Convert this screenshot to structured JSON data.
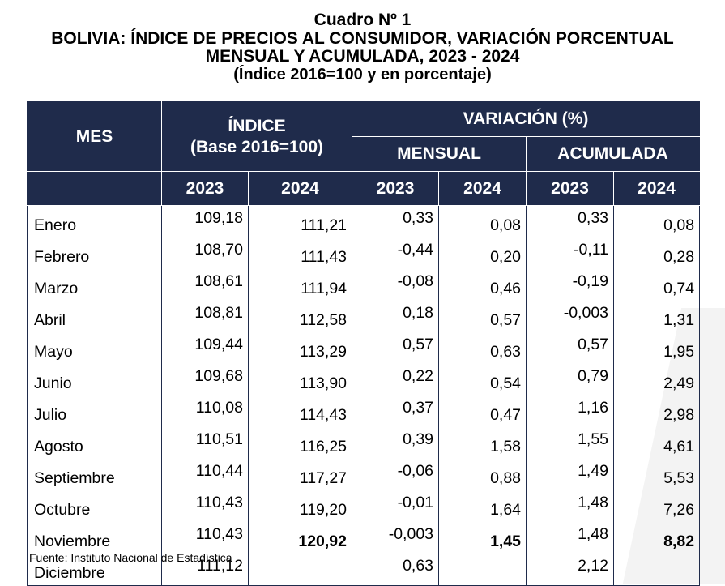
{
  "title": {
    "line1": "Cuadro Nº 1",
    "line2": "BOLIVIA: ÍNDICE DE PRECIOS AL CONSUMIDOR, VARIACIÓN PORCENTUAL",
    "line3": "MENSUAL Y ACUMULADA, 2023 - 2024",
    "line4": "(Índice 2016=100 y en porcentaje)"
  },
  "table": {
    "headers": {
      "mes": "MES",
      "indice": "ÍNDICE",
      "indice_base": "(Base 2016=100)",
      "variacion": "VARIACIÓN (%)",
      "mensual": "MENSUAL",
      "acumulada": "ACUMULADA",
      "years": [
        "2023",
        "2024",
        "2023",
        "2024",
        "2023",
        "2024"
      ]
    },
    "rows": [
      {
        "mes": "Enero",
        "i23": "109,18",
        "i24": "111,21",
        "m23": "0,33",
        "m24": "0,08",
        "a23": "0,33",
        "a24": "0,08"
      },
      {
        "mes": "Febrero",
        "i23": "108,70",
        "i24": "111,43",
        "m23": "-0,44",
        "m24": "0,20",
        "a23": "-0,11",
        "a24": "0,28"
      },
      {
        "mes": "Marzo",
        "i23": "108,61",
        "i24": "111,94",
        "m23": "-0,08",
        "m24": "0,46",
        "a23": "-0,19",
        "a24": "0,74"
      },
      {
        "mes": "Abril",
        "i23": "108,81",
        "i24": "112,58",
        "m23": "0,18",
        "m24": "0,57",
        "a23": "-0,003",
        "a24": "1,31"
      },
      {
        "mes": "Mayo",
        "i23": "109,44",
        "i24": "113,29",
        "m23": "0,57",
        "m24": "0,63",
        "a23": "0,57",
        "a24": "1,95"
      },
      {
        "mes": "Junio",
        "i23": "109,68",
        "i24": "113,90",
        "m23": "0,22",
        "m24": "0,54",
        "a23": "0,79",
        "a24": "2,49"
      },
      {
        "mes": "Julio",
        "i23": "110,08",
        "i24": "114,43",
        "m23": "0,37",
        "m24": "0,47",
        "a23": "1,16",
        "a24": "2,98"
      },
      {
        "mes": "Agosto",
        "i23": "110,51",
        "i24": "116,25",
        "m23": "0,39",
        "m24": "1,58",
        "a23": "1,55",
        "a24": "4,61"
      },
      {
        "mes": "Septiembre",
        "i23": "110,44",
        "i24": "117,27",
        "m23": "-0,06",
        "m24": "0,88",
        "a23": "1,49",
        "a24": "5,53"
      },
      {
        "mes": "Octubre",
        "i23": "110,43",
        "i24": "119,20",
        "m23": "-0,01",
        "m24": "1,64",
        "a23": "1,48",
        "a24": "7,26"
      },
      {
        "mes": "Noviembre",
        "i23": "110,43",
        "i24": "120,92",
        "m23": "-0,003",
        "m24": "1,45",
        "a23": "1,48",
        "a24": "8,82"
      },
      {
        "mes": "Diciembre",
        "i23": "111,12",
        "i24": "",
        "m23": "0,63",
        "m24": "",
        "a23": "2,12",
        "a24": ""
      }
    ]
  },
  "source": "Fuente: Instituto Nacional de Estadística"
}
